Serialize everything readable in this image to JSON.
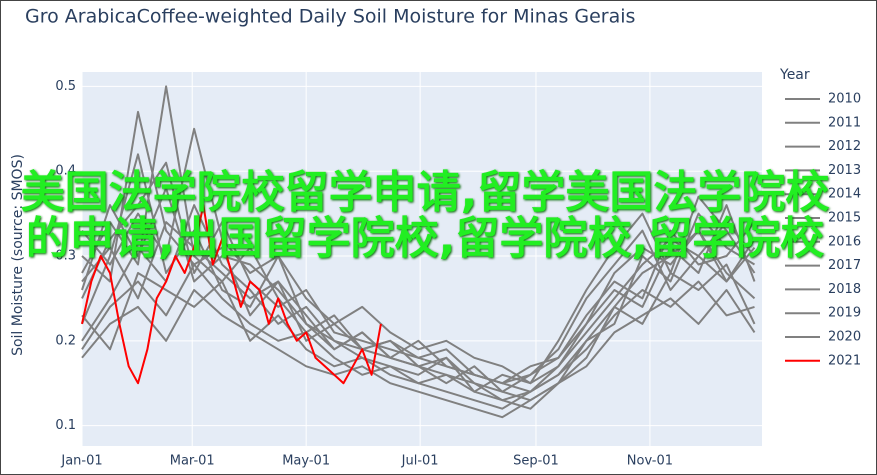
{
  "chart_data": {
    "type": "line",
    "title": "Gro ArabicaCoffee-weighted Daily Soil Moisture for Minas Gerais",
    "y_label": "Soil Moisture (source: SMOS)",
    "legend_title": "Year",
    "overlay_text": "美国法学院校留学申请,留学美国法学院校的申请,出国留学院校,留学院校,留学院校",
    "x": [
      0,
      15,
      30,
      45,
      60,
      75,
      90,
      105,
      120,
      135,
      150,
      165,
      180,
      195,
      210,
      225,
      240,
      255,
      270,
      285,
      300,
      315,
      330,
      345,
      360
    ],
    "xlim": [
      0,
      364
    ],
    "xticks": [
      {
        "value": 0,
        "label": "Jan-01"
      },
      {
        "value": 59,
        "label": "Mar-01"
      },
      {
        "value": 120,
        "label": "May-01"
      },
      {
        "value": 181,
        "label": "Jul-01"
      },
      {
        "value": 243,
        "label": "Sep-01"
      },
      {
        "value": 304,
        "label": "Nov-01"
      }
    ],
    "ylim": [
      0.076,
      0.517
    ],
    "yticks": [
      0.1,
      0.2,
      0.3,
      0.4,
      0.5
    ],
    "grid": true,
    "legend": "right",
    "series": [
      {
        "name": "2010",
        "color": "#808080",
        "values": [
          0.22,
          0.3,
          0.42,
          0.28,
          0.33,
          0.26,
          0.24,
          0.3,
          0.22,
          0.19,
          0.21,
          0.18,
          0.17,
          0.16,
          0.15,
          0.14,
          0.13,
          0.15,
          0.18,
          0.24,
          0.28,
          0.3,
          0.33,
          0.28,
          0.25
        ]
      },
      {
        "name": "2011",
        "color": "#808080",
        "values": [
          0.28,
          0.34,
          0.29,
          0.5,
          0.3,
          0.27,
          0.31,
          0.25,
          0.21,
          0.23,
          0.19,
          0.18,
          0.2,
          0.17,
          0.16,
          0.15,
          0.14,
          0.16,
          0.2,
          0.22,
          0.3,
          0.27,
          0.35,
          0.31,
          0.29
        ]
      },
      {
        "name": "2012",
        "color": "#808080",
        "values": [
          0.2,
          0.25,
          0.31,
          0.27,
          0.36,
          0.29,
          0.26,
          0.22,
          0.24,
          0.2,
          0.18,
          0.17,
          0.16,
          0.18,
          0.15,
          0.13,
          0.14,
          0.17,
          0.22,
          0.26,
          0.24,
          0.31,
          0.28,
          0.36,
          0.27
        ]
      },
      {
        "name": "2013",
        "color": "#808080",
        "values": [
          0.3,
          0.27,
          0.47,
          0.33,
          0.29,
          0.31,
          0.23,
          0.27,
          0.2,
          0.22,
          0.19,
          0.2,
          0.17,
          0.15,
          0.17,
          0.14,
          0.16,
          0.19,
          0.25,
          0.29,
          0.33,
          0.26,
          0.3,
          0.27,
          0.32
        ]
      },
      {
        "name": "2014",
        "color": "#808080",
        "values": [
          0.18,
          0.22,
          0.24,
          0.2,
          0.26,
          0.23,
          0.21,
          0.19,
          0.17,
          0.16,
          0.17,
          0.15,
          0.14,
          0.13,
          0.12,
          0.11,
          0.13,
          0.15,
          0.17,
          0.21,
          0.23,
          0.25,
          0.22,
          0.26,
          0.21
        ]
      },
      {
        "name": "2015",
        "color": "#808080",
        "values": [
          0.25,
          0.32,
          0.36,
          0.41,
          0.28,
          0.34,
          0.27,
          0.24,
          0.26,
          0.21,
          0.2,
          0.19,
          0.18,
          0.19,
          0.16,
          0.15,
          0.17,
          0.18,
          0.23,
          0.27,
          0.25,
          0.33,
          0.29,
          0.3,
          0.34
        ]
      },
      {
        "name": "2016",
        "color": "#808080",
        "values": [
          0.33,
          0.29,
          0.35,
          0.3,
          0.45,
          0.32,
          0.28,
          0.3,
          0.25,
          0.22,
          0.24,
          0.21,
          0.19,
          0.2,
          0.18,
          0.17,
          0.15,
          0.2,
          0.26,
          0.31,
          0.35,
          0.28,
          0.37,
          0.33,
          0.28
        ]
      },
      {
        "name": "2017",
        "color": "#808080",
        "values": [
          0.19,
          0.24,
          0.27,
          0.23,
          0.29,
          0.25,
          0.22,
          0.2,
          0.21,
          0.18,
          0.16,
          0.17,
          0.15,
          0.14,
          0.13,
          0.12,
          0.14,
          0.16,
          0.19,
          0.23,
          0.26,
          0.24,
          0.27,
          0.23,
          0.24
        ]
      },
      {
        "name": "2018",
        "color": "#808080",
        "values": [
          0.27,
          0.31,
          0.25,
          0.34,
          0.31,
          0.28,
          0.25,
          0.27,
          0.23,
          0.19,
          0.21,
          0.18,
          0.17,
          0.18,
          0.14,
          0.16,
          0.15,
          0.17,
          0.21,
          0.25,
          0.29,
          0.32,
          0.3,
          0.34,
          0.3
        ]
      },
      {
        "name": "2019",
        "color": "#808080",
        "values": [
          0.23,
          0.19,
          0.28,
          0.26,
          0.24,
          0.27,
          0.2,
          0.23,
          0.19,
          0.17,
          0.18,
          0.16,
          0.15,
          0.16,
          0.14,
          0.13,
          0.12,
          0.15,
          0.2,
          0.24,
          0.22,
          0.28,
          0.26,
          0.29,
          0.22
        ]
      },
      {
        "name": "2020",
        "color": "#808080",
        "values": [
          0.26,
          0.36,
          0.3,
          0.38,
          0.27,
          0.3,
          0.29,
          0.26,
          0.22,
          0.2,
          0.19,
          0.2,
          0.18,
          0.17,
          0.16,
          0.15,
          0.16,
          0.18,
          0.22,
          0.28,
          0.31,
          0.29,
          0.33,
          0.27,
          0.31
        ]
      },
      {
        "name": "2021",
        "color": "#ff0000",
        "x": [
          0,
          5,
          10,
          15,
          20,
          25,
          30,
          35,
          40,
          45,
          50,
          55,
          60,
          65,
          70,
          75,
          80,
          85,
          90,
          95,
          100,
          105,
          110,
          115,
          120,
          125,
          130,
          135,
          140,
          145,
          150,
          155,
          160
        ],
        "values": [
          0.22,
          0.27,
          0.3,
          0.28,
          0.22,
          0.17,
          0.15,
          0.19,
          0.25,
          0.27,
          0.3,
          0.28,
          0.31,
          0.36,
          0.29,
          0.32,
          0.28,
          0.24,
          0.27,
          0.26,
          0.22,
          0.25,
          0.22,
          0.2,
          0.21,
          0.18,
          0.17,
          0.16,
          0.15,
          0.17,
          0.19,
          0.16,
          0.22
        ]
      }
    ]
  }
}
